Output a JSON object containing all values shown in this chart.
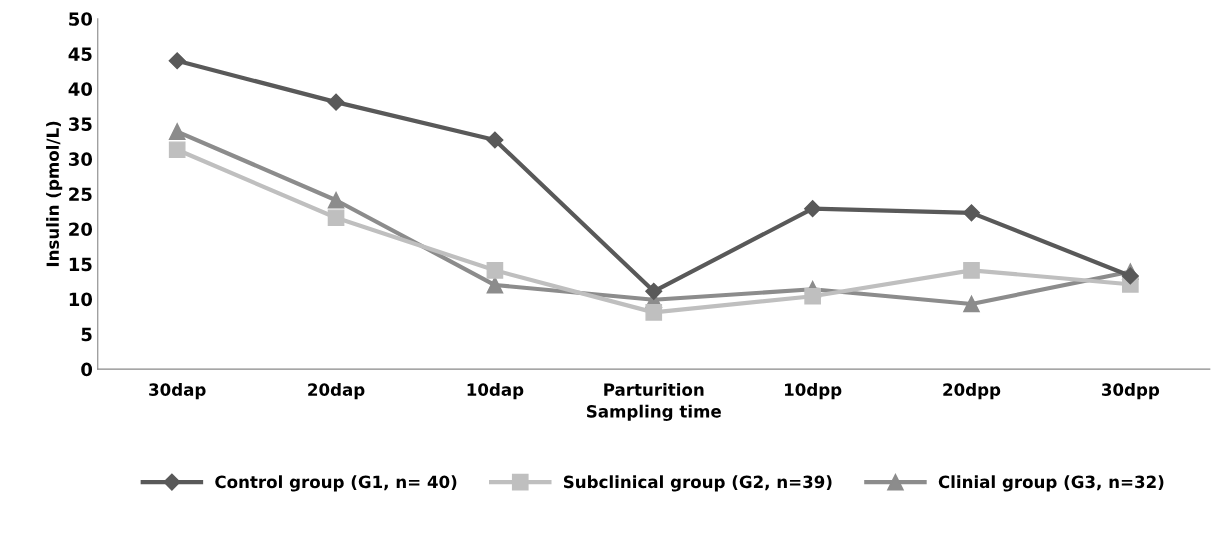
{
  "chart_data": {
    "type": "line",
    "xlabel": "Sampling time",
    "ylabel": "Insulin (pmol/L)",
    "categories": [
      "30dap",
      "20dap",
      "10dap",
      "Parturition",
      "10dpp",
      "20dpp",
      "30dpp"
    ],
    "ylim": [
      0,
      50
    ],
    "yticks": [
      0,
      5,
      10,
      15,
      20,
      25,
      30,
      35,
      40,
      45,
      50
    ],
    "grid": false,
    "legend": "bottom",
    "line_style": "solid",
    "series": [
      {
        "name": "Control group (G1, n= 40)",
        "color": "#595959",
        "marker": "diamond",
        "values": [
          44.0,
          38.1,
          32.7,
          11.1,
          22.9,
          22.3,
          13.3
        ]
      },
      {
        "name": "Subclinical group (G2, n=39)",
        "color": "#bfbfbf",
        "marker": "square",
        "values": [
          31.3,
          21.6,
          14.1,
          8.1,
          10.4,
          14.1,
          12.1
        ]
      },
      {
        "name": "Clinial group (G3, n=32)",
        "color": "#8c8c8c",
        "marker": "triangle",
        "values": [
          33.9,
          24.1,
          12.0,
          9.9,
          11.4,
          9.3,
          13.9
        ]
      }
    ]
  }
}
